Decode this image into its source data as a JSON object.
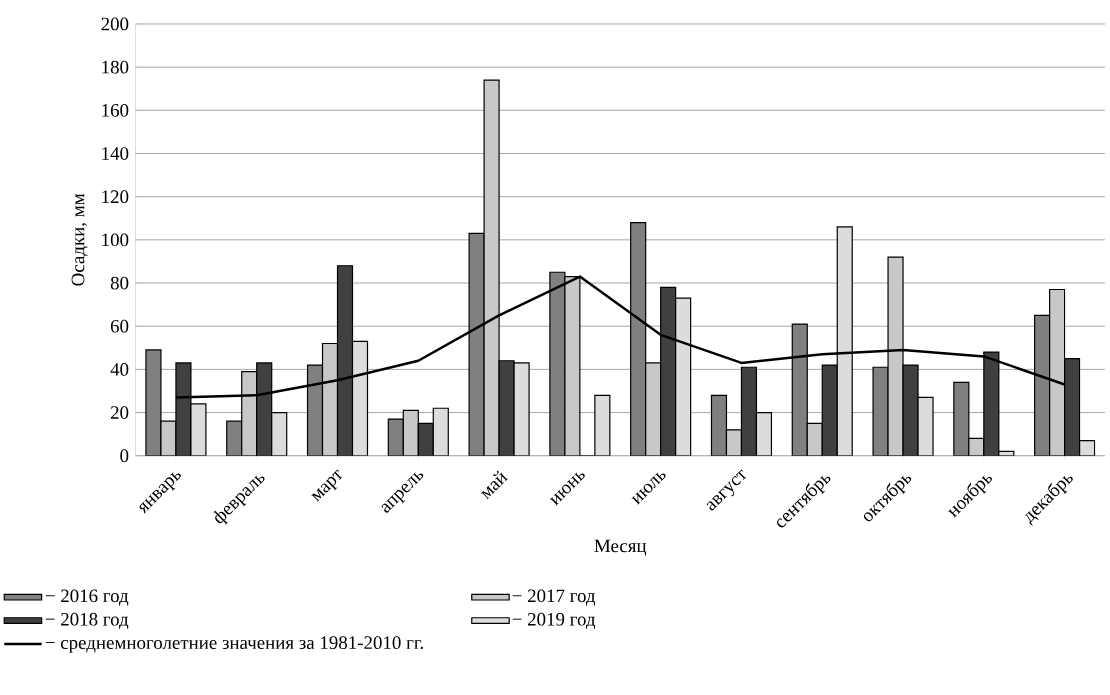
{
  "chart_data": {
    "type": "bar",
    "xlabel": "Месяц",
    "ylabel": "Осадки, мм",
    "categories": [
      "январь",
      "февраль",
      "март",
      "апрель",
      "май",
      "июнь",
      "июль",
      "август",
      "сентябрь",
      "октябрь",
      "ноябрь",
      "декабрь"
    ],
    "series": [
      {
        "name": "− 2016 год",
        "color": "#808080",
        "values": [
          49,
          16,
          42,
          17,
          103,
          85,
          108,
          28,
          61,
          41,
          34,
          65
        ]
      },
      {
        "name": "− 2017 год",
        "color": "#c8c8c8",
        "values": [
          16,
          39,
          52,
          21,
          174,
          83,
          43,
          12,
          15,
          92,
          8,
          77
        ]
      },
      {
        "name": "− 2018 год",
        "color": "#404040",
        "values": [
          43,
          43,
          88,
          15,
          44,
          0,
          78,
          41,
          42,
          42,
          48,
          45
        ]
      },
      {
        "name": "− 2019 год",
        "color": "#dcdcdc",
        "values": [
          24,
          20,
          53,
          22,
          43,
          28,
          73,
          20,
          106,
          27,
          2,
          7
        ]
      },
      {
        "name": "− среднемноголетние значения за 1981-2010 гг.",
        "type": "line",
        "color": "#000000",
        "values": [
          27,
          28,
          35,
          44,
          65,
          83,
          56,
          43,
          47,
          49,
          46,
          33
        ]
      }
    ],
    "ylim": [
      0,
      200
    ],
    "yticks": [
      0,
      20,
      40,
      60,
      80,
      100,
      120,
      140,
      160,
      180,
      200
    ],
    "grid": "y",
    "legend": "bottom"
  }
}
